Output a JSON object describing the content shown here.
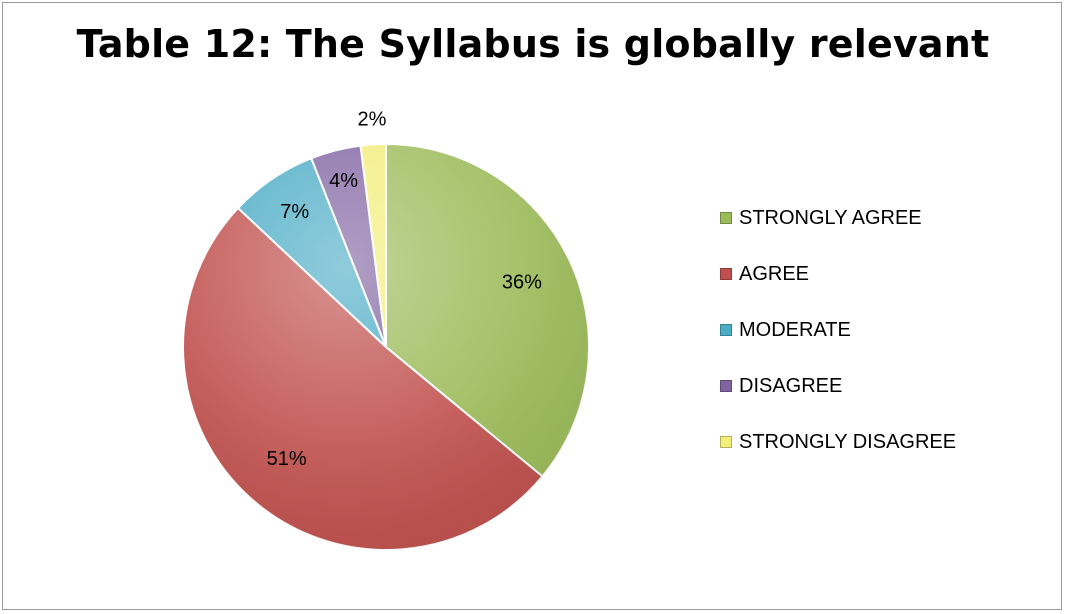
{
  "chart_data": {
    "type": "pie",
    "title": "Table 12: The Syllabus is globally relevant",
    "slices": [
      {
        "label": "STRONGLY AGREE",
        "value": 36,
        "value_label": "36%",
        "color": "#9BBB59"
      },
      {
        "label": "AGREE",
        "value": 51,
        "value_label": "51%",
        "color": "#C0504D"
      },
      {
        "label": "MODERATE",
        "value": 7,
        "value_label": "7%",
        "color": "#4BACC6"
      },
      {
        "label": "DISAGREE",
        "value": 4,
        "value_label": "4%",
        "color": "#8064A2"
      },
      {
        "label": "STRONGLY DISAGREE",
        "value": 2,
        "value_label": "2%",
        "color": "#F2EE7A"
      }
    ],
    "legend_position": "right",
    "start_angle_deg": 0,
    "direction": "clockwise"
  }
}
